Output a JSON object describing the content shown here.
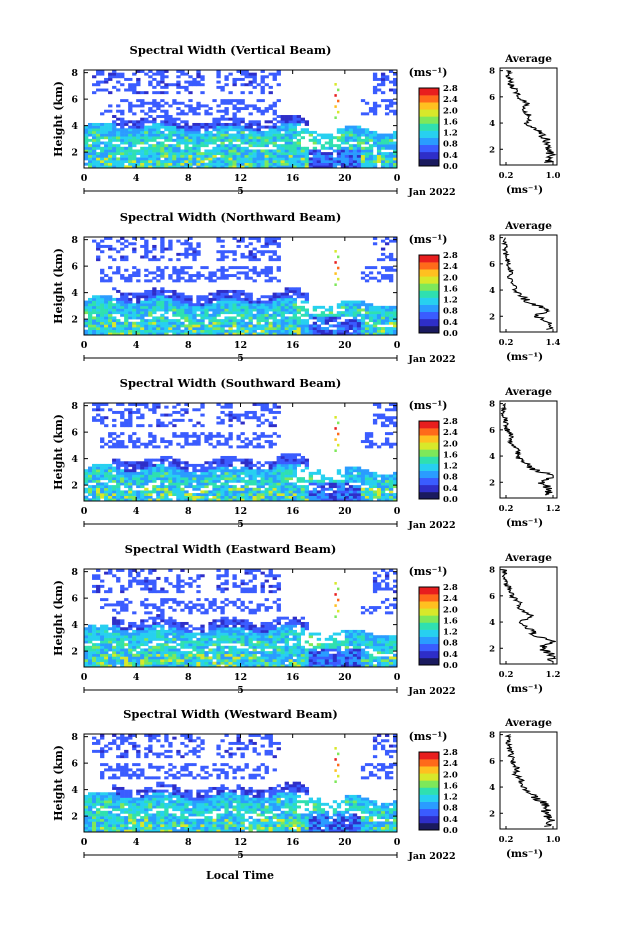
{
  "figure": {
    "x_axis_label": "Local Time",
    "date_suffix": "Jan 2022",
    "day_label": "5",
    "x_ticks": [
      "0",
      "4",
      "8",
      "12",
      "16",
      "20",
      "0"
    ],
    "y_label": "Height (km)",
    "y_ticks": [
      "8",
      "6",
      "4",
      "2"
    ],
    "colorbar_unit": "(ms⁻¹)",
    "colorbar_ticks": [
      "2.8",
      "2.4",
      "2.0",
      "1.6",
      "1.2",
      "0.8",
      "0.4",
      "0.0"
    ],
    "average_title": "Average",
    "average_unit": "(ms⁻¹)",
    "colormap": [
      "#1a1a5e",
      "#2e2ec8",
      "#3a5cff",
      "#2a9cff",
      "#27d0f0",
      "#2fe0b0",
      "#7ee85a",
      "#d8e82a",
      "#ffc020",
      "#ff6a1a",
      "#e81e1e"
    ]
  },
  "chart_data": [
    {
      "type": "heatmap",
      "title": "Spectral Width (Vertical Beam)",
      "xlabel": "",
      "ylabel": "Height (km)",
      "xlim": [
        0,
        24
      ],
      "ylim": [
        0.8,
        8.2
      ],
      "colorbar_range": [
        0.0,
        2.8
      ],
      "boundary_layer_top_km": [
        4.0,
        3.8,
        3.9,
        3.7
      ],
      "average_profile": {
        "xlim": [
          0.0,
          1.1
        ],
        "x_ticks": [
          "0.2",
          "1.0"
        ],
        "height_km": [
          1.0,
          1.5,
          2.0,
          2.5,
          3.0,
          3.5,
          4.0,
          4.5,
          5.0,
          5.5,
          6.0,
          6.5,
          7.0,
          7.5,
          8.0
        ],
        "width": [
          0.95,
          0.98,
          0.9,
          0.95,
          0.8,
          0.7,
          0.5,
          0.6,
          0.45,
          0.55,
          0.35,
          0.3,
          0.2,
          0.18,
          0.15
        ]
      }
    },
    {
      "type": "heatmap",
      "title": "Spectral Width (Northward Beam)",
      "xlabel": "",
      "ylabel": "Height (km)",
      "xlim": [
        0,
        24
      ],
      "ylim": [
        0.8,
        8.2
      ],
      "colorbar_range": [
        0.0,
        2.8
      ],
      "boundary_layer_top_km": [
        3.5,
        3.3,
        3.4,
        3.2
      ],
      "average_profile": {
        "xlim": [
          0.1,
          1.4
        ],
        "x_ticks": [
          "0.2",
          "1.4"
        ],
        "height_km": [
          1.0,
          1.5,
          2.0,
          2.5,
          3.0,
          3.5,
          4.0,
          4.5,
          5.0,
          5.5,
          6.0,
          6.5,
          7.0,
          7.5,
          8.0
        ],
        "width": [
          1.2,
          1.3,
          0.9,
          1.25,
          0.8,
          0.6,
          0.45,
          0.4,
          0.3,
          0.35,
          0.3,
          0.25,
          0.22,
          0.2,
          0.2
        ]
      }
    },
    {
      "type": "heatmap",
      "title": "Spectral Width (Southward Beam)",
      "xlabel": "",
      "ylabel": "Height (km)",
      "xlim": [
        0,
        24
      ],
      "ylim": [
        0.8,
        8.2
      ],
      "colorbar_range": [
        0.0,
        2.8
      ],
      "boundary_layer_top_km": [
        3.3,
        3.2,
        3.4,
        3.1
      ],
      "average_profile": {
        "xlim": [
          0.1,
          1.3
        ],
        "x_ticks": [
          "0.2",
          "1.2"
        ],
        "height_km": [
          1.0,
          1.5,
          2.0,
          2.5,
          3.0,
          3.5,
          4.0,
          4.5,
          5.0,
          5.5,
          6.0,
          6.5,
          7.0,
          7.5,
          8.0
        ],
        "width": [
          1.1,
          1.15,
          0.95,
          1.2,
          0.8,
          0.6,
          0.45,
          0.5,
          0.3,
          0.35,
          0.25,
          0.22,
          0.2,
          0.18,
          0.2
        ]
      }
    },
    {
      "type": "heatmap",
      "title": "Spectral Width (Eastward Beam)",
      "xlabel": "",
      "ylabel": "Height (km)",
      "xlim": [
        0,
        24
      ],
      "ylim": [
        0.8,
        8.2
      ],
      "colorbar_range": [
        0.0,
        2.8
      ],
      "boundary_layer_top_km": [
        3.8,
        3.6,
        3.7,
        3.4
      ],
      "average_profile": {
        "xlim": [
          0.1,
          1.3
        ],
        "x_ticks": [
          "0.2",
          "1.2"
        ],
        "height_km": [
          1.0,
          1.5,
          2.0,
          2.5,
          3.0,
          3.5,
          4.0,
          4.5,
          5.0,
          5.5,
          6.0,
          6.5,
          7.0,
          7.5,
          8.0
        ],
        "width": [
          1.15,
          1.2,
          0.95,
          1.2,
          0.85,
          0.7,
          0.55,
          0.75,
          0.5,
          0.5,
          0.35,
          0.3,
          0.22,
          0.2,
          0.2
        ]
      }
    },
    {
      "type": "heatmap",
      "title": "Spectral Width (Westward Beam)",
      "xlabel": "Local Time",
      "ylabel": "Height (km)",
      "xlim": [
        0,
        24
      ],
      "ylim": [
        0.8,
        8.2
      ],
      "colorbar_range": [
        0.0,
        2.8
      ],
      "boundary_layer_top_km": [
        3.6,
        3.5,
        3.6,
        3.3
      ],
      "average_profile": {
        "xlim": [
          0.0,
          1.1
        ],
        "x_ticks": [
          "0.2",
          "1.0"
        ],
        "height_km": [
          1.0,
          1.5,
          2.0,
          2.5,
          3.0,
          3.5,
          4.0,
          4.5,
          5.0,
          5.5,
          6.0,
          6.5,
          7.0,
          7.5,
          8.0
        ],
        "width": [
          0.95,
          1.0,
          0.85,
          0.95,
          0.75,
          0.6,
          0.45,
          0.4,
          0.3,
          0.32,
          0.25,
          0.2,
          0.18,
          0.15,
          0.15
        ]
      }
    }
  ]
}
